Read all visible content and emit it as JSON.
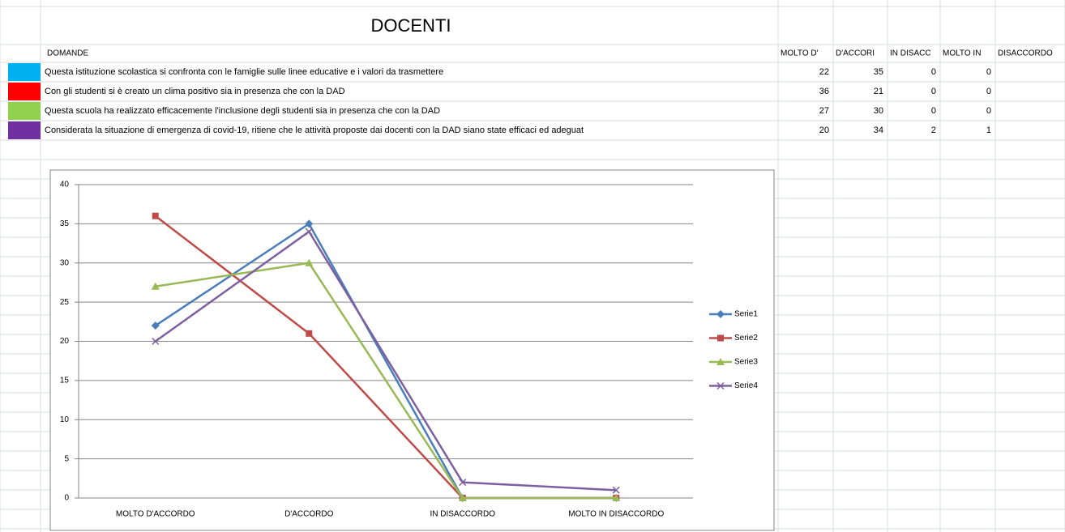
{
  "sheet": {
    "title": "DOCENTI",
    "header": [
      "DOMANDE",
      "MOLTO D'",
      "D'ACCORI",
      "IN DISACC",
      "MOLTO IN",
      "DISACCORDO"
    ],
    "rows": [
      {
        "color": "#00b0f0",
        "label": "Questa istituzione scolastica si confronta con le famiglie sulle linee educative e i valori da trasmettere",
        "values": [
          22,
          35,
          0,
          0
        ]
      },
      {
        "color": "#ff0000",
        "label": "Con gli studenti si è creato un clima positivo sia in presenza che con la DAD",
        "values": [
          36,
          21,
          0,
          0
        ]
      },
      {
        "color": "#92d050",
        "label": "Questa scuola ha realizzato efficacemente l'inclusione degli studenti sia in presenza che con la DAD",
        "values": [
          27,
          30,
          0,
          0
        ]
      },
      {
        "color": "#7030a0",
        "label": "Considerata la situazione di emergenza di covid-19, ritiene che le attività proposte dai docenti con la DAD siano state efficaci ed adeguat",
        "values": [
          20,
          34,
          2,
          1
        ]
      }
    ]
  },
  "chart_data": {
    "type": "line",
    "categories": [
      "MOLTO D'ACCORDO",
      "D'ACCORDO",
      "IN DISACCORDO",
      "MOLTO IN DISACCORDO"
    ],
    "series": [
      {
        "name": "Serie1",
        "color": "#4a7ebb",
        "marker": "diamond",
        "values": [
          22,
          35,
          0,
          0
        ]
      },
      {
        "name": "Serie2",
        "color": "#be4b48",
        "marker": "square",
        "values": [
          36,
          21,
          0,
          0
        ]
      },
      {
        "name": "Serie3",
        "color": "#98b954",
        "marker": "triangle",
        "values": [
          27,
          30,
          0,
          0
        ]
      },
      {
        "name": "Serie4",
        "color": "#7d60a0",
        "marker": "x",
        "values": [
          20,
          34,
          2,
          1
        ]
      }
    ],
    "ylim": [
      0,
      40
    ],
    "yticks": [
      0,
      5,
      10,
      15,
      20,
      25,
      30,
      35,
      40
    ],
    "grid": true,
    "legend": "right"
  }
}
